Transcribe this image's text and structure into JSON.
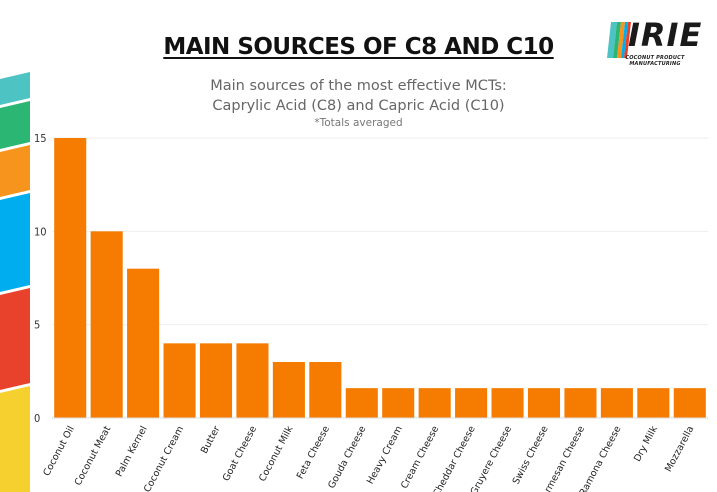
{
  "header": {
    "title": "MAIN SOURCES OF C8 AND C10",
    "subtitle_line1": "Main sources of the most effective MCTs:",
    "subtitle_line2": "Caprylic Acid (C8) and Capric Acid (C10)",
    "note": "*Totals averaged"
  },
  "logo": {
    "text": "IRIE",
    "tagline": "COCONUT PRODUCT MANUFACTURING"
  },
  "colors": {
    "bar": "#F57C00",
    "grid": "#EEEEEE",
    "stripes": [
      "#4DC3C3",
      "#2BB673",
      "#F7941D",
      "#00AEEF",
      "#E8412C",
      "#F6D02F"
    ]
  },
  "chart_data": {
    "type": "bar",
    "title": "MAIN SOURCES OF C8 AND C10",
    "xlabel": "",
    "ylabel": "",
    "ylim": [
      0,
      15
    ],
    "yticks": [
      0,
      5,
      10,
      15
    ],
    "grid": true,
    "categories": [
      "Coconut Oil",
      "Coconut Meat",
      "Palm Kernel",
      "Coconut Cream",
      "Butter",
      "Goat Cheese",
      "Coconut Milk",
      "Feta Cheese",
      "Gouda Cheese",
      "Heavy Cream",
      "Cream Cheese",
      "Cheddar Cheese",
      "Gruyere Cheese",
      "Swiss Cheese",
      "Parmesan Cheese",
      "Ramona Cheese",
      "Dry Milk",
      "Mozzarella"
    ],
    "values": [
      15,
      10,
      8,
      4,
      4,
      4,
      3,
      3,
      1.6,
      1.6,
      1.6,
      1.6,
      1.6,
      1.6,
      1.6,
      1.6,
      1.6,
      1.6
    ]
  }
}
